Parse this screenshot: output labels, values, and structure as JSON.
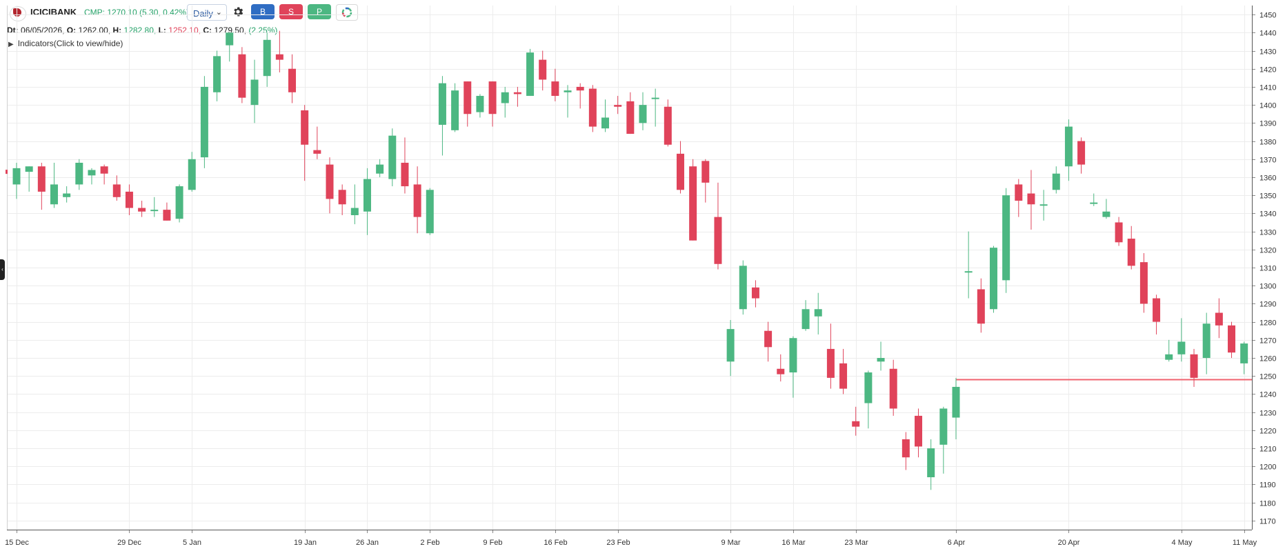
{
  "header": {
    "symbol": "ICICIBANK",
    "cmp_text": "CMP: 1270.10 (5.30, 0.42%)",
    "timeframe": "Daily",
    "buttons": {
      "buy": "B",
      "sell": "S",
      "p": "P"
    },
    "icons": {
      "settings": "gear-icon",
      "ring": "ring-icon",
      "logo": "icici-logo"
    }
  },
  "ohlc": {
    "dt_label": "Dt:",
    "dt": "06/05/2026,",
    "o_label": "O:",
    "o": "1262.00,",
    "h_label": "H:",
    "h": "1282.80,",
    "l_label": "L:",
    "l": "1252.10,",
    "c_label": "C:",
    "c": "1279.50,",
    "chg": "(2.25%)"
  },
  "indicators_toggle": "Indicators(Click to view/hide)",
  "colors": {
    "up": "#4cb782",
    "down": "#e0435a",
    "grid": "#ececec",
    "hline": "#f0616e"
  },
  "chart_data": {
    "type": "candlestick",
    "ylim": [
      1165,
      1455
    ],
    "y_ticks": [
      1170,
      1180,
      1190,
      1200,
      1210,
      1220,
      1230,
      1240,
      1250,
      1260,
      1270,
      1280,
      1290,
      1300,
      1310,
      1320,
      1330,
      1340,
      1350,
      1360,
      1370,
      1380,
      1390,
      1400,
      1410,
      1420,
      1430,
      1440,
      1450
    ],
    "x_labels": [
      {
        "label": "15 Dec",
        "i": 0
      },
      {
        "label": "29 Dec",
        "i": 9
      },
      {
        "label": "5 Jan",
        "i": 14
      },
      {
        "label": "19 Jan",
        "i": 23
      },
      {
        "label": "26 Jan",
        "i": 28
      },
      {
        "label": "2 Feb",
        "i": 33
      },
      {
        "label": "9 Feb",
        "i": 38
      },
      {
        "label": "16 Feb",
        "i": 43
      },
      {
        "label": "23 Feb",
        "i": 48
      },
      {
        "label": "9 Mar",
        "i": 57
      },
      {
        "label": "16 Mar",
        "i": 62
      },
      {
        "label": "23 Mar",
        "i": 67
      },
      {
        "label": "6 Apr",
        "i": 75
      },
      {
        "label": "20 Apr",
        "i": 84
      },
      {
        "label": "4 May",
        "i": 93
      },
      {
        "label": "11 May",
        "i": 98
      }
    ],
    "horizontal_line": {
      "value": 1248,
      "from_i": 75
    },
    "candles": [
      [
        1356,
        1368,
        1348,
        1365
      ],
      [
        1363,
        1366,
        1352,
        1366
      ],
      [
        1366,
        1368,
        1342,
        1352
      ],
      [
        1345,
        1368,
        1343,
        1356
      ],
      [
        1349,
        1355,
        1346,
        1351
      ],
      [
        1356,
        1370,
        1353,
        1368
      ],
      [
        1361,
        1365,
        1356,
        1364
      ],
      [
        1366,
        1367,
        1356,
        1362
      ],
      [
        1356,
        1361,
        1347,
        1349
      ],
      [
        1352,
        1356,
        1339,
        1343
      ],
      [
        1343,
        1347,
        1338,
        1341
      ],
      [
        1342,
        1349,
        1338,
        1342
      ],
      [
        1342,
        1346,
        1336,
        1336
      ],
      [
        1337,
        1356,
        1335,
        1355
      ],
      [
        1353,
        1374,
        1352,
        1370
      ],
      [
        1371,
        1416,
        1365,
        1410
      ],
      [
        1407,
        1430,
        1402,
        1427
      ],
      [
        1433,
        1440,
        1424,
        1440
      ],
      [
        1428,
        1432,
        1401,
        1404
      ],
      [
        1400,
        1425,
        1390,
        1414
      ],
      [
        1416,
        1440,
        1410,
        1436
      ],
      [
        1428,
        1441,
        1418,
        1425
      ],
      [
        1420,
        1428,
        1401,
        1407
      ],
      [
        1397,
        1400,
        1358,
        1378
      ],
      [
        1375,
        1388,
        1370,
        1373
      ],
      [
        1367,
        1371,
        1340,
        1348
      ],
      [
        1353,
        1356,
        1339,
        1345
      ],
      [
        1339,
        1356,
        1334,
        1343
      ],
      [
        1341,
        1365,
        1328,
        1359
      ],
      [
        1362,
        1370,
        1360,
        1367
      ],
      [
        1359,
        1387,
        1355,
        1383
      ],
      [
        1368,
        1382,
        1351,
        1355
      ],
      [
        1356,
        1366,
        1329,
        1338
      ],
      [
        1329,
        1354,
        1328,
        1353
      ],
      [
        1389,
        1416,
        1372,
        1412
      ],
      [
        1386,
        1412,
        1385,
        1408
      ],
      [
        1413,
        1413,
        1388,
        1395
      ],
      [
        1396,
        1406,
        1393,
        1405
      ],
      [
        1413,
        1413,
        1388,
        1395
      ],
      [
        1401,
        1410,
        1393,
        1407
      ],
      [
        1407,
        1410,
        1399,
        1406
      ],
      [
        1405,
        1431,
        1405,
        1429
      ],
      [
        1425,
        1430,
        1408,
        1414
      ],
      [
        1413,
        1420,
        1402,
        1405
      ],
      [
        1407,
        1411,
        1393,
        1408
      ],
      [
        1410,
        1412,
        1398,
        1408
      ],
      [
        1409,
        1411,
        1385,
        1388
      ],
      [
        1387,
        1403,
        1385,
        1393
      ],
      [
        1400,
        1405,
        1395,
        1399
      ],
      [
        1402,
        1407,
        1384,
        1384
      ],
      [
        1390,
        1407,
        1386,
        1400
      ],
      [
        1404,
        1409,
        1388,
        1404
      ],
      [
        1399,
        1403,
        1377,
        1378
      ],
      [
        1373,
        1380,
        1351,
        1353
      ],
      [
        1366,
        1370,
        1325,
        1325
      ],
      [
        1369,
        1370,
        1346,
        1357
      ],
      [
        1338,
        1357,
        1309,
        1312
      ],
      [
        1258,
        1281,
        1250,
        1276
      ],
      [
        1287,
        1314,
        1284,
        1311
      ],
      [
        1299,
        1303,
        1288,
        1293
      ],
      [
        1275,
        1280,
        1258,
        1266
      ],
      [
        1254,
        1262,
        1247,
        1251
      ],
      [
        1252,
        1272,
        1238,
        1271
      ],
      [
        1276,
        1292,
        1275,
        1287
      ],
      [
        1283,
        1296,
        1273,
        1287
      ],
      [
        1265,
        1279,
        1243,
        1249
      ],
      [
        1257,
        1265,
        1240,
        1243
      ],
      [
        1225,
        1233,
        1217,
        1222
      ],
      [
        1235,
        1253,
        1221,
        1252
      ],
      [
        1258,
        1269,
        1253,
        1260
      ],
      [
        1254,
        1259,
        1228,
        1232
      ],
      [
        1215,
        1219,
        1198,
        1205
      ],
      [
        1228,
        1232,
        1205,
        1211
      ],
      [
        1194,
        1215,
        1187,
        1210
      ],
      [
        1212,
        1233,
        1196,
        1232
      ],
      [
        1227,
        1249,
        1215,
        1244
      ],
      [
        1308,
        1330,
        1293,
        1308
      ],
      [
        1298,
        1304,
        1274,
        1279
      ],
      [
        1287,
        1322,
        1285,
        1321
      ],
      [
        1303,
        1354,
        1296,
        1350
      ],
      [
        1356,
        1359,
        1338,
        1347
      ],
      [
        1351,
        1364,
        1331,
        1345
      ],
      [
        1345,
        1353,
        1336,
        1345
      ],
      [
        1353,
        1366,
        1351,
        1362
      ],
      [
        1366,
        1392,
        1358,
        1388
      ],
      [
        1380,
        1382,
        1362,
        1367
      ],
      [
        1346,
        1351,
        1344,
        1346
      ],
      [
        1338,
        1348,
        1337,
        1341
      ],
      [
        1335,
        1338,
        1322,
        1324
      ],
      [
        1326,
        1333,
        1309,
        1311
      ],
      [
        1313,
        1318,
        1285,
        1290
      ],
      [
        1293,
        1295,
        1273,
        1280
      ],
      [
        1259,
        1270,
        1258,
        1262
      ],
      [
        1262,
        1282,
        1258,
        1269
      ],
      [
        1262,
        1265,
        1244,
        1249
      ],
      [
        1260,
        1285,
        1251,
        1279
      ],
      [
        1285,
        1293,
        1271,
        1278
      ],
      [
        1278,
        1280,
        1260,
        1263
      ],
      [
        1257,
        1269,
        1251,
        1268
      ]
    ]
  }
}
